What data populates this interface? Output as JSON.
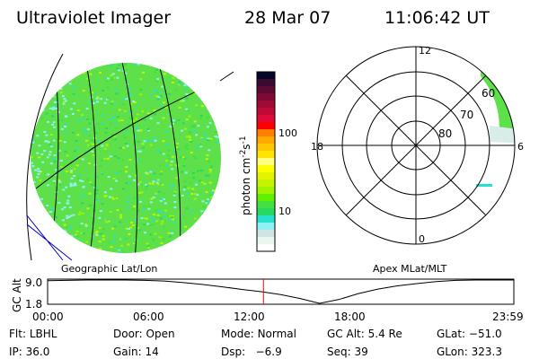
{
  "header": {
    "title": "Ultraviolet Imager",
    "date": "28 Mar 07",
    "time": "11:06:42 UT"
  },
  "colorbar": {
    "label": "photon cm",
    "exp1": "-2",
    "s": "s",
    "exp2": "-1",
    "ticks": [
      "100",
      "10"
    ],
    "colors": [
      "#06062a",
      "#3a0a30",
      "#5c0a34",
      "#7e0a34",
      "#a00a36",
      "#c00a36",
      "#e00a36",
      "#ff0000",
      "#ff8000",
      "#ffa800",
      "#ffc800",
      "#ffe400",
      "#ffff80",
      "#ffff00",
      "#e4f400",
      "#c4f400",
      "#a0f400",
      "#60f000",
      "#44e040",
      "#28d860",
      "#28e0d0",
      "#90f0f4",
      "#d0e4e4",
      "#ecf6f0",
      "#ffffff"
    ]
  },
  "image_panel": {
    "label": "Geographic Lat/Lon"
  },
  "polar": {
    "label": "Apex MLat/MLT",
    "mlt_labels": [
      "12",
      "18",
      "6",
      "0"
    ],
    "lat_labels": [
      "60",
      "70",
      "80"
    ]
  },
  "chart_data": {
    "type": "line",
    "title": "",
    "ylabel": "GC Alt",
    "yticks": [
      "9.0",
      "1.8"
    ],
    "ylim": [
      1.8,
      9.0
    ],
    "xticks": [
      "00:00",
      "06:00",
      "12:00",
      "18:00",
      "23:59"
    ],
    "xlim": [
      0,
      24
    ],
    "x": [
      0,
      1,
      2,
      3,
      4,
      5,
      6,
      7,
      8,
      9,
      10,
      11,
      12,
      13,
      14,
      15,
      16,
      17,
      18,
      19,
      20,
      21,
      22,
      23,
      24
    ],
    "values": [
      8.8,
      8.9,
      9.0,
      9.0,
      9.0,
      8.9,
      8.7,
      8.2,
      7.6,
      6.9,
      6.1,
      5.4,
      4.5,
      3.3,
      1.8,
      3.0,
      4.8,
      6.2,
      7.2,
      7.9,
      8.5,
      8.9,
      9.0,
      9.0,
      9.0
    ],
    "marker_time": 11.11,
    "marker_color": "#ff0000"
  },
  "status": [
    {
      "label": "Flt:",
      "value": "LBHL"
    },
    {
      "label": "Door:",
      "value": "Open"
    },
    {
      "label": "Mode:",
      "value": "Normal"
    },
    {
      "label": "GC Alt:",
      "value": "5.4 Re"
    },
    {
      "label": "GLat:",
      "value": "−51.0"
    },
    {
      "label": "IP:",
      "value": "36.0"
    },
    {
      "label": "Gain:",
      "value": "14"
    },
    {
      "label": "Dsp:",
      "value": "  −6.9"
    },
    {
      "label": "Seq:",
      "value": "39"
    },
    {
      "label": "GLon:",
      "value": "323.3"
    }
  ]
}
